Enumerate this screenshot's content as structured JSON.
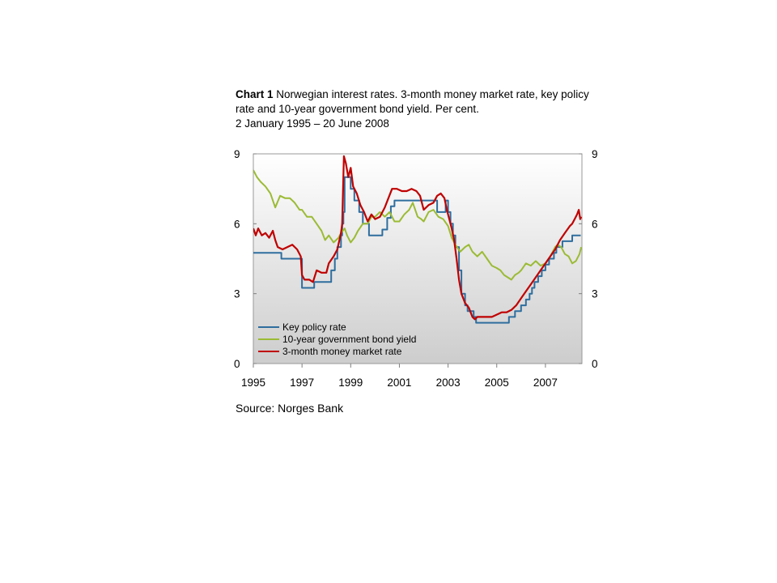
{
  "chart_data": {
    "type": "line",
    "title_bold": "Chart 1",
    "title_rest": "Norwegian interest rates. 3-month money market rate, key policy rate and 10-year government bond yield. Per cent.",
    "title_dates": "2 January 1995 – 20 June 2008",
    "xlim": [
      1995.0,
      2008.5
    ],
    "ylim": [
      0,
      9
    ],
    "y_ticks": [
      0,
      3,
      6,
      9
    ],
    "x_ticks": [
      1995,
      1997,
      1999,
      2001,
      2003,
      2005,
      2007
    ],
    "grid": false,
    "legend_position": "bottom-left",
    "source": "Source: Norges Bank",
    "series": [
      {
        "name": "Key policy rate",
        "color": "#2e6e9e",
        "step": true,
        "points": [
          [
            1995.0,
            4.75
          ],
          [
            1996.15,
            4.5
          ],
          [
            1996.9,
            4.5
          ],
          [
            1997.0,
            3.25
          ],
          [
            1997.5,
            3.5
          ],
          [
            1998.05,
            3.5
          ],
          [
            1998.2,
            4.0
          ],
          [
            1998.35,
            4.5
          ],
          [
            1998.45,
            5.0
          ],
          [
            1998.6,
            5.5
          ],
          [
            1998.65,
            6.0
          ],
          [
            1998.7,
            6.5
          ],
          [
            1998.75,
            8.0
          ],
          [
            1999.0,
            7.5
          ],
          [
            1999.15,
            7.0
          ],
          [
            1999.35,
            6.5
          ],
          [
            1999.5,
            6.0
          ],
          [
            1999.75,
            5.5
          ],
          [
            2000.3,
            5.75
          ],
          [
            2000.5,
            6.25
          ],
          [
            2000.65,
            6.75
          ],
          [
            2000.8,
            7.0
          ],
          [
            2002.5,
            7.0
          ],
          [
            2002.55,
            6.5
          ],
          [
            2002.85,
            6.5
          ],
          [
            2002.9,
            7.0
          ],
          [
            2003.0,
            6.5
          ],
          [
            2003.1,
            6.0
          ],
          [
            2003.2,
            5.5
          ],
          [
            2003.3,
            5.0
          ],
          [
            2003.45,
            4.0
          ],
          [
            2003.55,
            3.0
          ],
          [
            2003.7,
            2.5
          ],
          [
            2003.8,
            2.25
          ],
          [
            2004.05,
            2.0
          ],
          [
            2004.15,
            1.75
          ],
          [
            2005.45,
            1.75
          ],
          [
            2005.5,
            2.0
          ],
          [
            2005.75,
            2.25
          ],
          [
            2006.0,
            2.5
          ],
          [
            2006.2,
            2.75
          ],
          [
            2006.35,
            3.0
          ],
          [
            2006.45,
            3.25
          ],
          [
            2006.55,
            3.5
          ],
          [
            2006.7,
            3.75
          ],
          [
            2006.85,
            4.0
          ],
          [
            2007.0,
            4.25
          ],
          [
            2007.15,
            4.5
          ],
          [
            2007.35,
            4.75
          ],
          [
            2007.45,
            5.0
          ],
          [
            2007.7,
            5.25
          ],
          [
            2008.1,
            5.5
          ],
          [
            2008.45,
            5.5
          ]
        ]
      },
      {
        "name": "10-year government bond yield",
        "color": "#9bbb34",
        "step": false,
        "points": [
          [
            1995.0,
            8.3
          ],
          [
            1995.15,
            8.0
          ],
          [
            1995.3,
            7.8
          ],
          [
            1995.5,
            7.6
          ],
          [
            1995.7,
            7.3
          ],
          [
            1995.9,
            6.7
          ],
          [
            1996.1,
            7.2
          ],
          [
            1996.3,
            7.1
          ],
          [
            1996.5,
            7.1
          ],
          [
            1996.7,
            6.9
          ],
          [
            1996.9,
            6.6
          ],
          [
            1997.0,
            6.6
          ],
          [
            1997.2,
            6.3
          ],
          [
            1997.4,
            6.3
          ],
          [
            1997.6,
            6.0
          ],
          [
            1997.8,
            5.7
          ],
          [
            1997.95,
            5.3
          ],
          [
            1998.1,
            5.5
          ],
          [
            1998.3,
            5.2
          ],
          [
            1998.5,
            5.4
          ],
          [
            1998.6,
            5.6
          ],
          [
            1998.75,
            5.8
          ],
          [
            1998.85,
            5.5
          ],
          [
            1999.0,
            5.2
          ],
          [
            1999.15,
            5.4
          ],
          [
            1999.3,
            5.7
          ],
          [
            1999.5,
            6.0
          ],
          [
            1999.7,
            6.0
          ],
          [
            1999.85,
            6.3
          ],
          [
            2000.0,
            6.3
          ],
          [
            2000.2,
            6.5
          ],
          [
            2000.4,
            6.3
          ],
          [
            2000.6,
            6.5
          ],
          [
            2000.8,
            6.1
          ],
          [
            2001.0,
            6.1
          ],
          [
            2001.2,
            6.4
          ],
          [
            2001.4,
            6.6
          ],
          [
            2001.55,
            6.9
          ],
          [
            2001.75,
            6.3
          ],
          [
            2001.9,
            6.2
          ],
          [
            2002.0,
            6.1
          ],
          [
            2002.2,
            6.5
          ],
          [
            2002.4,
            6.6
          ],
          [
            2002.6,
            6.3
          ],
          [
            2002.8,
            6.2
          ],
          [
            2003.0,
            5.9
          ],
          [
            2003.15,
            5.4
          ],
          [
            2003.3,
            5.1
          ],
          [
            2003.5,
            4.8
          ],
          [
            2003.7,
            5.0
          ],
          [
            2003.85,
            5.1
          ],
          [
            2004.0,
            4.8
          ],
          [
            2004.2,
            4.6
          ],
          [
            2004.4,
            4.8
          ],
          [
            2004.6,
            4.5
          ],
          [
            2004.8,
            4.2
          ],
          [
            2005.0,
            4.1
          ],
          [
            2005.15,
            4.0
          ],
          [
            2005.3,
            3.8
          ],
          [
            2005.45,
            3.7
          ],
          [
            2005.6,
            3.6
          ],
          [
            2005.75,
            3.8
          ],
          [
            2005.9,
            3.9
          ],
          [
            2006.0,
            4.0
          ],
          [
            2006.2,
            4.3
          ],
          [
            2006.4,
            4.2
          ],
          [
            2006.6,
            4.4
          ],
          [
            2006.8,
            4.2
          ],
          [
            2007.0,
            4.3
          ],
          [
            2007.2,
            4.6
          ],
          [
            2007.4,
            5.0
          ],
          [
            2007.5,
            5.1
          ],
          [
            2007.65,
            5.0
          ],
          [
            2007.8,
            4.7
          ],
          [
            2007.95,
            4.6
          ],
          [
            2008.1,
            4.3
          ],
          [
            2008.25,
            4.4
          ],
          [
            2008.4,
            4.7
          ],
          [
            2008.47,
            5.0
          ]
        ]
      },
      {
        "name": "3-month money market rate",
        "color": "#c00000",
        "step": false,
        "points": [
          [
            1995.0,
            5.8
          ],
          [
            1995.1,
            5.5
          ],
          [
            1995.2,
            5.8
          ],
          [
            1995.35,
            5.5
          ],
          [
            1995.5,
            5.6
          ],
          [
            1995.65,
            5.4
          ],
          [
            1995.8,
            5.7
          ],
          [
            1995.9,
            5.3
          ],
          [
            1996.0,
            5.0
          ],
          [
            1996.2,
            4.9
          ],
          [
            1996.4,
            5.0
          ],
          [
            1996.6,
            5.1
          ],
          [
            1996.8,
            4.9
          ],
          [
            1996.95,
            4.6
          ],
          [
            1997.0,
            3.8
          ],
          [
            1997.1,
            3.6
          ],
          [
            1997.3,
            3.6
          ],
          [
            1997.45,
            3.5
          ],
          [
            1997.6,
            4.0
          ],
          [
            1997.8,
            3.9
          ],
          [
            1998.0,
            3.9
          ],
          [
            1998.1,
            4.3
          ],
          [
            1998.3,
            4.6
          ],
          [
            1998.45,
            4.9
          ],
          [
            1998.6,
            5.6
          ],
          [
            1998.65,
            6.0
          ],
          [
            1998.72,
            8.9
          ],
          [
            1998.8,
            8.6
          ],
          [
            1998.9,
            8.0
          ],
          [
            1999.0,
            8.4
          ],
          [
            1999.1,
            7.6
          ],
          [
            1999.25,
            7.3
          ],
          [
            1999.4,
            6.8
          ],
          [
            1999.55,
            6.5
          ],
          [
            1999.7,
            6.1
          ],
          [
            1999.85,
            6.4
          ],
          [
            2000.0,
            6.2
          ],
          [
            2000.2,
            6.3
          ],
          [
            2000.4,
            6.7
          ],
          [
            2000.55,
            7.1
          ],
          [
            2000.7,
            7.5
          ],
          [
            2000.9,
            7.5
          ],
          [
            2001.1,
            7.4
          ],
          [
            2001.3,
            7.4
          ],
          [
            2001.5,
            7.5
          ],
          [
            2001.7,
            7.4
          ],
          [
            2001.85,
            7.2
          ],
          [
            2002.0,
            6.6
          ],
          [
            2002.2,
            6.8
          ],
          [
            2002.4,
            6.9
          ],
          [
            2002.55,
            7.2
          ],
          [
            2002.7,
            7.3
          ],
          [
            2002.85,
            7.1
          ],
          [
            2002.95,
            6.6
          ],
          [
            2003.05,
            6.2
          ],
          [
            2003.15,
            5.8
          ],
          [
            2003.25,
            5.3
          ],
          [
            2003.35,
            4.5
          ],
          [
            2003.45,
            3.6
          ],
          [
            2003.55,
            3.0
          ],
          [
            2003.7,
            2.6
          ],
          [
            2003.85,
            2.4
          ],
          [
            2004.0,
            2.0
          ],
          [
            2004.1,
            1.9
          ],
          [
            2004.2,
            2.0
          ],
          [
            2004.4,
            2.0
          ],
          [
            2004.6,
            2.0
          ],
          [
            2004.8,
            2.0
          ],
          [
            2005.0,
            2.1
          ],
          [
            2005.2,
            2.2
          ],
          [
            2005.4,
            2.2
          ],
          [
            2005.6,
            2.3
          ],
          [
            2005.8,
            2.5
          ],
          [
            2006.0,
            2.8
          ],
          [
            2006.2,
            3.1
          ],
          [
            2006.4,
            3.4
          ],
          [
            2006.6,
            3.7
          ],
          [
            2006.8,
            4.0
          ],
          [
            2007.0,
            4.3
          ],
          [
            2007.2,
            4.6
          ],
          [
            2007.4,
            4.9
          ],
          [
            2007.6,
            5.3
          ],
          [
            2007.8,
            5.6
          ],
          [
            2008.0,
            5.9
          ],
          [
            2008.1,
            6.0
          ],
          [
            2008.2,
            6.2
          ],
          [
            2008.3,
            6.4
          ],
          [
            2008.37,
            6.6
          ],
          [
            2008.43,
            6.2
          ],
          [
            2008.47,
            6.3
          ]
        ]
      }
    ]
  }
}
